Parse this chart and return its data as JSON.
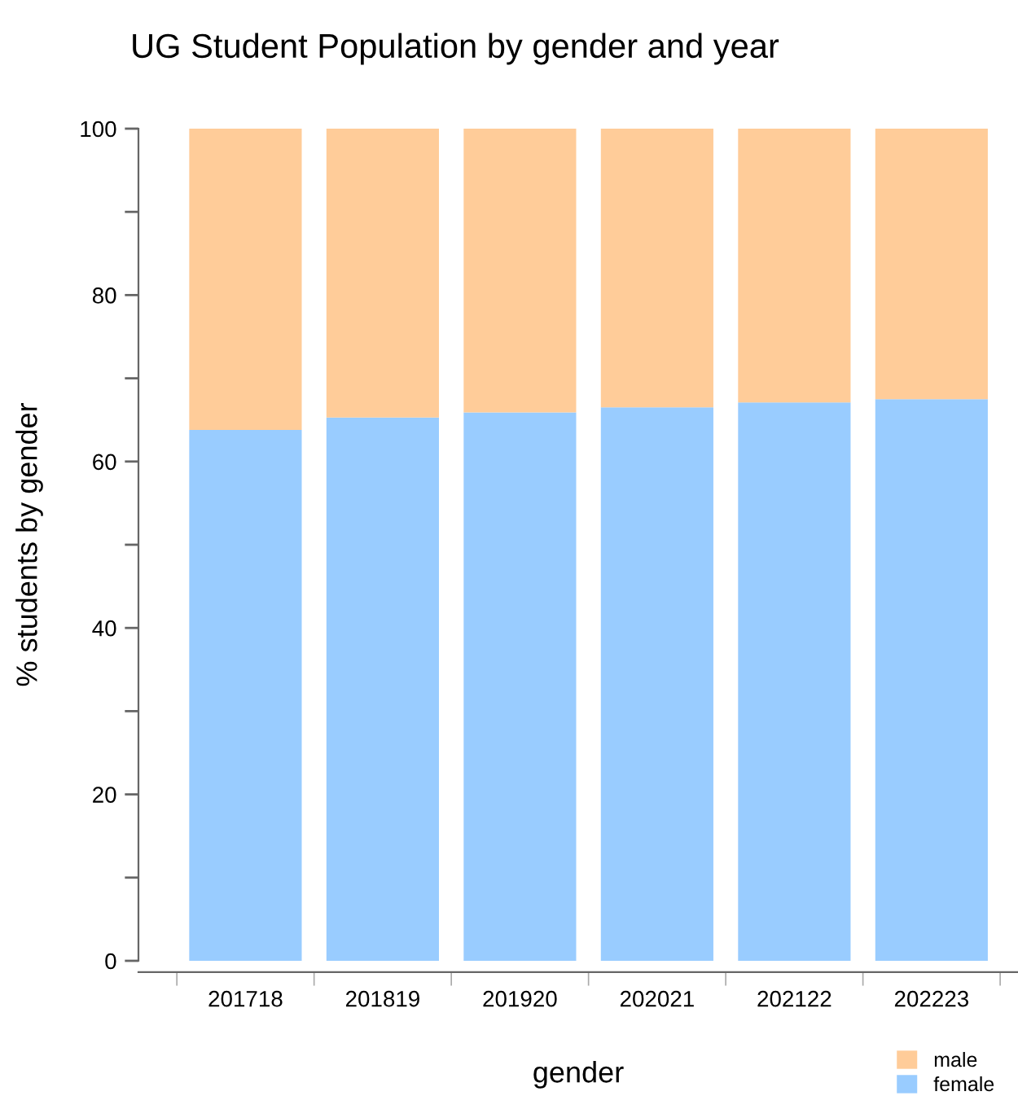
{
  "chart_data": {
    "type": "bar",
    "stacked": true,
    "title": "UG Student Population by gender and year",
    "xlabel": "gender",
    "ylabel": "% students by gender",
    "categories": [
      "201718",
      "201819",
      "201920",
      "202021",
      "202122",
      "202223"
    ],
    "series": [
      {
        "name": "female",
        "color": "#99ccff",
        "values": [
          63.8,
          65.3,
          65.9,
          66.5,
          67.1,
          67.5
        ]
      },
      {
        "name": "male",
        "color": "#ffcc99",
        "values": [
          36.2,
          34.7,
          34.1,
          33.5,
          32.9,
          32.5
        ]
      }
    ],
    "ylim": [
      0,
      100
    ],
    "yticks": [
      0,
      20,
      40,
      60,
      80,
      100
    ],
    "grid": false,
    "legend": "bottom right"
  }
}
